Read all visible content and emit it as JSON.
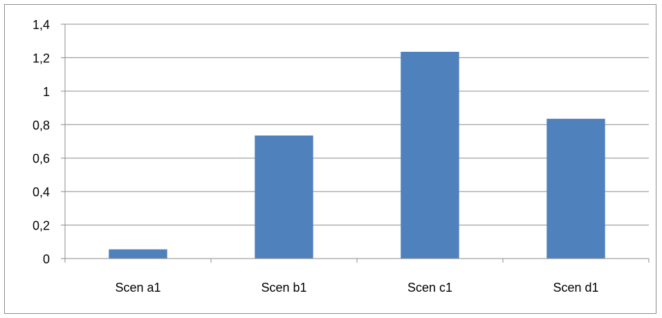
{
  "chart_data": {
    "type": "bar",
    "categories": [
      "Scen a1",
      "Scen b1",
      "Scen c1",
      "Scen d1"
    ],
    "values": [
      0.055,
      0.735,
      1.235,
      0.835
    ],
    "title": "",
    "xlabel": "",
    "ylabel": "",
    "ylim": [
      0,
      1.4
    ],
    "y_ticks": [
      "0",
      "0,2",
      "0,4",
      "0,6",
      "0,8",
      "1",
      "1,2",
      "1,4"
    ],
    "bar_color": "#4F81BD",
    "grid": true,
    "legend": "none"
  }
}
